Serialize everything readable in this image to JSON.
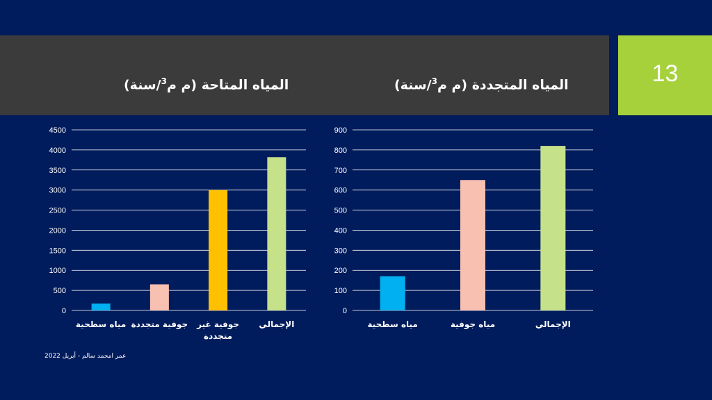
{
  "slide": {
    "number": "13"
  },
  "footer": "عمر امحمد سالم - أبريل 2022",
  "colors": {
    "background": "#011c5c",
    "title_bar": "#3b3b3b",
    "number_box": "#a6d13a",
    "gridline": "#ffffff"
  },
  "chart_data": [
    {
      "type": "bar",
      "title_main": "المياه المتاحة (م م",
      "title_sup": "3",
      "title_end": "/سنة)",
      "categories": [
        "مياه سطحية",
        "جوفية متجددة",
        "جوفية غير متجددة",
        "الإجمالي"
      ],
      "category_lines": [
        [
          "مياه سطحية"
        ],
        [
          "جوفية متجددة"
        ],
        [
          "جوفية غير",
          "متجددة"
        ],
        [
          "الإجمالي"
        ]
      ],
      "values": [
        170,
        650,
        3000,
        3820
      ],
      "colors": [
        "#00b0f0",
        "#f8c0b0",
        "#ffc000",
        "#c5e189"
      ],
      "ylim": [
        0,
        4500
      ],
      "yticks": [
        0,
        500,
        1000,
        1500,
        2000,
        2500,
        3000,
        3500,
        4000,
        4500
      ],
      "grid": true
    },
    {
      "type": "bar",
      "title_main": "المياه المتجددة (م م",
      "title_sup": "3",
      "title_end": "/سنة)",
      "categories": [
        "مياه سطحية",
        "مياه جوفية",
        "الإجمالي"
      ],
      "category_lines": [
        [
          "مياه سطحية"
        ],
        [
          "مياه جوفية"
        ],
        [
          "الإجمالي"
        ]
      ],
      "values": [
        170,
        650,
        820
      ],
      "colors": [
        "#00b0f0",
        "#f8c0b0",
        "#c5e189"
      ],
      "ylim": [
        0,
        900
      ],
      "yticks": [
        0,
        100,
        200,
        300,
        400,
        500,
        600,
        700,
        800,
        900
      ],
      "grid": true
    }
  ]
}
